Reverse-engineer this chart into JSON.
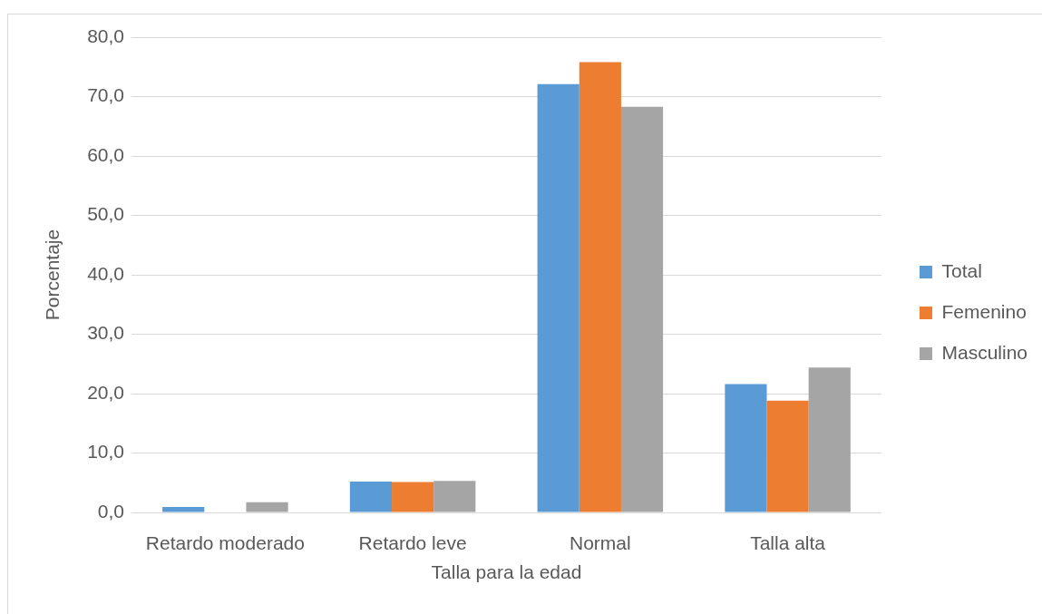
{
  "chart_data": {
    "type": "bar",
    "xlabel": "Talla para la edad",
    "ylabel": "Porcentaje",
    "categories": [
      "Retardo moderado",
      "Retardo leve",
      "Normal",
      "Talla alta"
    ],
    "series": [
      {
        "name": "Total",
        "color": "#5b9bd5",
        "values": [
          0.9,
          5.2,
          72.1,
          21.6
        ]
      },
      {
        "name": "Femenino",
        "color": "#ed7d31",
        "values": [
          0,
          5.1,
          75.8,
          18.8
        ]
      },
      {
        "name": "Masculino",
        "color": "#a5a5a5",
        "values": [
          1.7,
          5.3,
          68.3,
          24.4
        ]
      }
    ],
    "ylim": [
      0,
      80
    ],
    "yticks": [
      {
        "value": 0,
        "label": "0,0"
      },
      {
        "value": 10,
        "label": "10,0"
      },
      {
        "value": 20,
        "label": "20,0"
      },
      {
        "value": 30,
        "label": "30,0"
      },
      {
        "value": 40,
        "label": "40,0"
      },
      {
        "value": 50,
        "label": "50,0"
      },
      {
        "value": 60,
        "label": "60,0"
      },
      {
        "value": 70,
        "label": "70,0"
      },
      {
        "value": 80,
        "label": "80,0"
      }
    ],
    "grid": "y",
    "legend": "right"
  }
}
